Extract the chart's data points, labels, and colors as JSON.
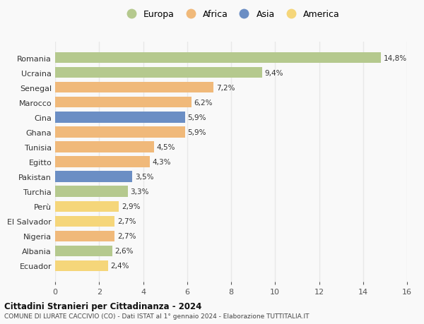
{
  "countries": [
    "Romania",
    "Ucraina",
    "Senegal",
    "Marocco",
    "Cina",
    "Ghana",
    "Tunisia",
    "Egitto",
    "Pakistan",
    "Turchia",
    "Perù",
    "El Salvador",
    "Nigeria",
    "Albania",
    "Ecuador"
  ],
  "values": [
    14.8,
    9.4,
    7.2,
    6.2,
    5.9,
    5.9,
    4.5,
    4.3,
    3.5,
    3.3,
    2.9,
    2.7,
    2.7,
    2.6,
    2.4
  ],
  "labels": [
    "14,8%",
    "9,4%",
    "7,2%",
    "6,2%",
    "5,9%",
    "5,9%",
    "4,5%",
    "4,3%",
    "3,5%",
    "3,3%",
    "2,9%",
    "2,7%",
    "2,7%",
    "2,6%",
    "2,4%"
  ],
  "continents": [
    "Europa",
    "Europa",
    "Africa",
    "Africa",
    "Asia",
    "Africa",
    "Africa",
    "Africa",
    "Asia",
    "Europa",
    "America",
    "America",
    "Africa",
    "Europa",
    "America"
  ],
  "continent_colors": {
    "Europa": "#b5c98e",
    "Africa": "#f0b97a",
    "Asia": "#6b8ec4",
    "America": "#f5d67a"
  },
  "legend_order": [
    "Europa",
    "Africa",
    "Asia",
    "America"
  ],
  "title": "Cittadini Stranieri per Cittadinanza - 2024",
  "subtitle": "COMUNE DI LURATE CACCIVIO (CO) - Dati ISTAT al 1° gennaio 2024 - Elaborazione TUTTITALIA.IT",
  "xlim": [
    0,
    16
  ],
  "xticks": [
    0,
    2,
    4,
    6,
    8,
    10,
    12,
    14,
    16
  ],
  "background_color": "#f9f9f9",
  "grid_color": "#e8e8e8",
  "bar_height": 0.72
}
